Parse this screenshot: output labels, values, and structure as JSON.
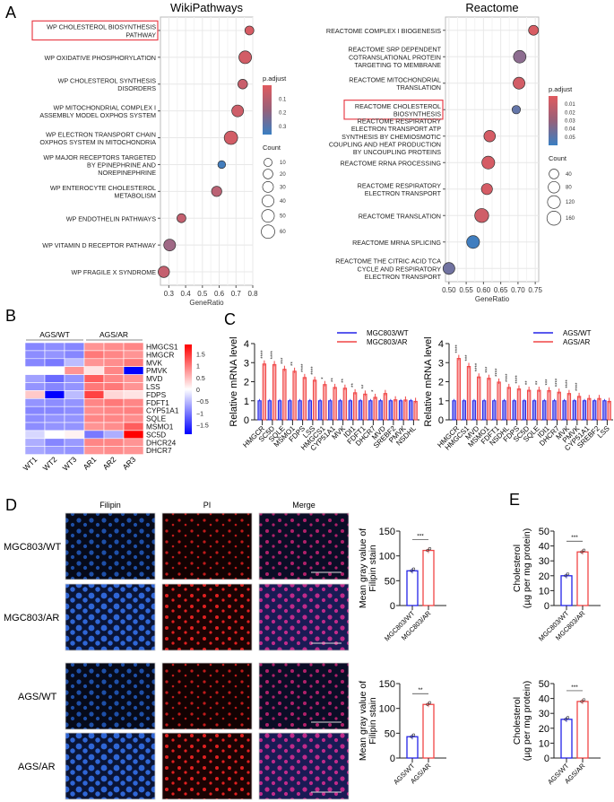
{
  "panels": {
    "A": "A",
    "B": "B",
    "C": "C",
    "D": "D",
    "E": "E"
  },
  "chart_data": [
    {
      "id": "wiki",
      "type": "scatter",
      "title": "WikiPathways",
      "xlabel": "GeneRatio",
      "xlim": [
        0.25,
        0.8
      ],
      "xticks": [
        "0.3",
        "0.4",
        "0.5",
        "0.6",
        "0.7",
        "0.8"
      ],
      "xtick_values": [
        0.3,
        0.4,
        0.5,
        0.6,
        0.7,
        0.8
      ],
      "highlighted": 0,
      "terms": [
        {
          "label": [
            "WP CHOLESTEROL BIOSYNTHESIS",
            "PATHWAY"
          ],
          "x": 0.78,
          "count": 15,
          "padj": 0.02
        },
        {
          "label": [
            "WP OXIDATIVE PHOSPHORYLATION"
          ],
          "x": 0.755,
          "count": 50,
          "padj": 0.03
        },
        {
          "label": [
            "WP CHOLESTEROL SYNTHESIS",
            "DISORDERS"
          ],
          "x": 0.74,
          "count": 20,
          "padj": 0.05
        },
        {
          "label": [
            "WP MITOCHONDRIAL COMPLEX I",
            "ASSEMBLY MODEL OXPHOS SYSTEM"
          ],
          "x": 0.71,
          "count": 40,
          "padj": 0.04
        },
        {
          "label": [
            "WP ELECTRON TRANSPORT CHAIN",
            "OXPHOS SYSTEM IN MITOCHONDRIA"
          ],
          "x": 0.67,
          "count": 60,
          "padj": 0.03
        },
        {
          "label": [
            "WP MAJOR RECEPTORS TARGETED",
            "BY EPINEPHRINE AND",
            "NOREPINEPHRINE"
          ],
          "x": 0.615,
          "count": 8,
          "padj": 0.34
        },
        {
          "label": [
            "WP ENTEROCYTE CHOLESTEROL",
            "METABOLISM"
          ],
          "x": 0.585,
          "count": 25,
          "padj": 0.08
        },
        {
          "label": [
            "WP ENDOTHELIN PATHWAYS"
          ],
          "x": 0.375,
          "count": 15,
          "padj": 0.06
        },
        {
          "label": [
            "WP VITAMIN D RECEPTOR PATHWAY"
          ],
          "x": 0.305,
          "count": 40,
          "padj": 0.14
        },
        {
          "label": [
            "WP FRAGILE X SYNDROME"
          ],
          "x": 0.27,
          "count": 35,
          "padj": 0.06
        }
      ],
      "legend_color": {
        "title": "p.adjust",
        "ticks": [
          "0.1",
          "0.2",
          "0.3"
        ],
        "tick_values": [
          0.1,
          0.2,
          0.3
        ],
        "range": [
          0.0,
          0.36
        ]
      },
      "legend_size": {
        "title": "Count",
        "ticks": [
          "10",
          "20",
          "30",
          "40",
          "50",
          "60"
        ],
        "tick_values": [
          10,
          20,
          30,
          40,
          50,
          60
        ]
      }
    },
    {
      "id": "reactome",
      "type": "scatter",
      "title": "Reactome",
      "xlabel": "GeneRatio",
      "xlim": [
        0.49,
        0.76
      ],
      "xticks": [
        "0.50",
        "0.55",
        "0.60",
        "0.65",
        "0.70",
        "0.75"
      ],
      "xtick_values": [
        0.5,
        0.55,
        0.6,
        0.65,
        0.7,
        0.75
      ],
      "highlighted": 3,
      "terms": [
        {
          "label": [
            "REACTOME COMPLEX I BIOGENESIS"
          ],
          "x": 0.745,
          "count": 45,
          "padj": 0.003
        },
        {
          "label": [
            "REACTOME SRP DEPENDENT",
            "COTRANSLATIONAL PROTEIN",
            "TARGETING TO MEMBRANE"
          ],
          "x": 0.705,
          "count": 110,
          "padj": 0.03
        },
        {
          "label": [
            "REACTOME MITOCHONDRIAL",
            "TRANSLATION"
          ],
          "x": 0.703,
          "count": 90,
          "padj": 0.005
        },
        {
          "label": [
            "REACTOME CHOLESTEROL",
            "BIOSYNTHESIS"
          ],
          "x": 0.695,
          "count": 20,
          "padj": 0.045
        },
        {
          "label": [
            "REACTOME RESPIRATORY",
            "ELECTRON TRANSPORT ATP",
            "SYNTHESIS BY CHEMIOSMOTIC",
            "COUPLING AND HEAT PRODUCTION",
            "BY UNCOUPLING PROTEINS"
          ],
          "x": 0.618,
          "count": 80,
          "padj": 0.004
        },
        {
          "label": [
            "REACTOME RRNA PROCESSING"
          ],
          "x": 0.614,
          "count": 120,
          "padj": 0.004
        },
        {
          "label": [
            "REACTOME RESPIRATORY",
            "ELECTRON TRANSPORT"
          ],
          "x": 0.61,
          "count": 70,
          "padj": 0.004
        },
        {
          "label": [
            "REACTOME TRANSLATION"
          ],
          "x": 0.595,
          "count": 160,
          "padj": 0.006
        },
        {
          "label": [
            "REACTOME MRNA SPLICING"
          ],
          "x": 0.57,
          "count": 120,
          "padj": 0.058
        },
        {
          "label": [
            "REACTOME THE CITRIC ACID TCA",
            "CYCLE AND RESPIRATORY",
            "ELECTRON TRANSPORT"
          ],
          "x": 0.5,
          "count": 90,
          "padj": 0.04
        }
      ],
      "legend_color": {
        "title": "p.adjust",
        "ticks": [
          "0.01",
          "0.02",
          "0.03",
          "0.04",
          "0.05"
        ],
        "tick_values": [
          0.01,
          0.02,
          0.03,
          0.04,
          0.05
        ],
        "range": [
          0.0,
          0.06
        ]
      },
      "legend_size": {
        "title": "Count",
        "ticks": [
          "40",
          "80",
          "120",
          "160"
        ],
        "tick_values": [
          40,
          80,
          120,
          160
        ]
      }
    },
    {
      "id": "heatmap",
      "type": "heatmap",
      "groups": [
        "AGS/WT",
        "AGS/AR"
      ],
      "columns": [
        "WT1",
        "WT2",
        "WT3",
        "AR1",
        "AR2",
        "AR3"
      ],
      "rows": [
        "HMGCS1",
        "HMGCR",
        "MVK",
        "PMVK",
        "MVD",
        "LSS",
        "FDPS",
        "FDFT1",
        "CYP51A1",
        "SQLE",
        "MSMO1",
        "SC5D",
        "DHCR24",
        "DHCR7"
      ],
      "values": [
        [
          -0.9,
          -0.85,
          -0.9,
          0.8,
          0.85,
          0.9
        ],
        [
          -0.85,
          -0.8,
          -0.9,
          1.0,
          0.9,
          0.8
        ],
        [
          -0.9,
          -1.0,
          -0.5,
          0.8,
          0.85,
          1.0
        ],
        [
          0.0,
          0.0,
          0.8,
          0.2,
          0.9,
          -1.9
        ],
        [
          -0.7,
          -1.1,
          -0.8,
          1.2,
          0.9,
          0.8
        ],
        [
          -0.8,
          -0.9,
          -0.8,
          1.0,
          1.0,
          0.8
        ],
        [
          0.4,
          -1.9,
          -0.5,
          1.4,
          0.3,
          0.2
        ],
        [
          -0.8,
          -0.85,
          -0.8,
          0.9,
          1.0,
          0.9
        ],
        [
          -0.9,
          -0.9,
          -0.85,
          0.85,
          0.9,
          0.95
        ],
        [
          -0.85,
          -0.8,
          -0.8,
          0.9,
          0.9,
          0.85
        ],
        [
          -0.85,
          -0.8,
          -0.8,
          0.8,
          0.85,
          1.2
        ],
        [
          -0.3,
          0.0,
          0.1,
          -1.0,
          -0.6,
          1.9
        ],
        [
          -0.6,
          -0.9,
          -0.75,
          0.9,
          0.9,
          0.8
        ],
        [
          -0.65,
          -0.75,
          -0.8,
          0.8,
          0.85,
          0.8
        ]
      ],
      "legend_ticks": [
        "1.5",
        "1",
        "0.5",
        "0",
        "−0.5",
        "−1",
        "−1.5"
      ],
      "legend_tick_values": [
        1.5,
        1,
        0.5,
        0,
        -0.5,
        -1,
        -1.5
      ],
      "range": [
        -1.9,
        1.9
      ]
    },
    {
      "id": "mrna_mgc803",
      "type": "bar",
      "ylabel": "Relative mRNA level",
      "ylim": [
        0,
        4
      ],
      "yticks": [
        "0",
        "1",
        "2",
        "3",
        "4"
      ],
      "categories": [
        "HMGCR",
        "SC5D",
        "SQLE",
        "MSMO1",
        "FDPS",
        "LSS",
        "HMGCS1",
        "CYP51A1",
        "MVK",
        "IDI1",
        "FDFT1",
        "DHCR7",
        "MVD",
        "SREBF2",
        "PMVK",
        "NSDHL"
      ],
      "series": [
        {
          "name": "MGC803/WT",
          "color": "#2323e8",
          "values": [
            1,
            1,
            1,
            1,
            1,
            1,
            1,
            1,
            1,
            1,
            1,
            1,
            1,
            1,
            1,
            1
          ]
        },
        {
          "name": "MGC803/AR",
          "color": "#f04545",
          "values": [
            2.93,
            2.9,
            2.65,
            2.55,
            2.22,
            2.08,
            1.85,
            1.7,
            1.66,
            1.42,
            1.35,
            1.18,
            1.38,
            1.05,
            1.04,
            0.97
          ]
        }
      ],
      "significance": [
        "****",
        "****",
        "***",
        "**",
        "****",
        "****",
        "*",
        "**",
        "**",
        "**",
        "**",
        "*",
        "",
        "",
        "",
        ""
      ]
    },
    {
      "id": "mrna_ags",
      "type": "bar",
      "ylabel": "Relative mRNA level",
      "ylim": [
        0,
        4
      ],
      "yticks": [
        "0",
        "1",
        "2",
        "3",
        "4"
      ],
      "categories": [
        "HMGCR",
        "HMGCS1",
        "MVD",
        "MSMO1",
        "FDFT1",
        "NSDHL",
        "FDPS",
        "SC5D",
        "SQLE",
        "IDI1",
        "DHCR7",
        "MVK",
        "PMVK",
        "CYP51A1",
        "SREBF2",
        "LSS"
      ],
      "series": [
        {
          "name": "AGS/WT",
          "color": "#2323e8",
          "values": [
            1,
            1,
            1,
            1,
            1,
            1,
            1,
            1,
            1,
            1,
            1,
            1,
            1,
            1,
            1,
            1
          ]
        },
        {
          "name": "AGS/AR",
          "color": "#f04545",
          "values": [
            3.22,
            2.8,
            2.25,
            2.18,
            1.98,
            1.7,
            1.62,
            1.55,
            1.55,
            1.53,
            1.45,
            1.38,
            1.23,
            1.12,
            1.12,
            0.97
          ]
        }
      ],
      "significance": [
        "****",
        "***",
        "****",
        "***",
        "****",
        "****",
        "****",
        "**",
        "**",
        "***",
        "****",
        "****",
        "****",
        "",
        "",
        ""
      ]
    },
    {
      "id": "filipin_mgc803",
      "type": "bar",
      "ylabel": [
        "Mean gray value of",
        "Filipin stain"
      ],
      "ylim": [
        0,
        150
      ],
      "yticks": [
        "0",
        "50",
        "100",
        "150"
      ],
      "categories": [
        "MGC803/WT",
        "MGC803/AR"
      ],
      "values": [
        70,
        111
      ],
      "significance": "***"
    },
    {
      "id": "filipin_ags",
      "type": "bar",
      "ylabel": [
        "Mean gray value of",
        "Filipin stain"
      ],
      "ylim": [
        0,
        150
      ],
      "yticks": [
        "0",
        "50",
        "100",
        "150"
      ],
      "categories": [
        "AGS/WT",
        "AGS/AR"
      ],
      "values": [
        43,
        108
      ],
      "significance": "**"
    },
    {
      "id": "chol_mgc803",
      "type": "bar",
      "ylabel": [
        "Cholesterol",
        "(µg per mg protein)"
      ],
      "ylim": [
        0,
        50
      ],
      "yticks": [
        "0",
        "10",
        "20",
        "30",
        "40",
        "50"
      ],
      "categories": [
        "MGC803/WT",
        "MGC803/AR"
      ],
      "values": [
        20,
        36
      ],
      "significance": "***"
    },
    {
      "id": "chol_ags",
      "type": "bar",
      "ylabel": [
        "Cholesterol",
        "(µg per mg protein)"
      ],
      "ylim": [
        0,
        50
      ],
      "yticks": [
        "0",
        "10",
        "20",
        "30",
        "40",
        "50"
      ],
      "categories": [
        "AGS/WT",
        "AGS/AR"
      ],
      "values": [
        26,
        38
      ],
      "significance": "***"
    }
  ],
  "microscopy": {
    "columns": [
      "Filipin",
      "PI",
      "Merge"
    ],
    "rows": [
      "MGC803/WT",
      "MGC803/AR",
      "AGS/WT",
      "AGS/AR"
    ]
  },
  "colors": {
    "red": "#f04545",
    "blue": "#2323e8",
    "highlight_box": "#e8414b"
  }
}
